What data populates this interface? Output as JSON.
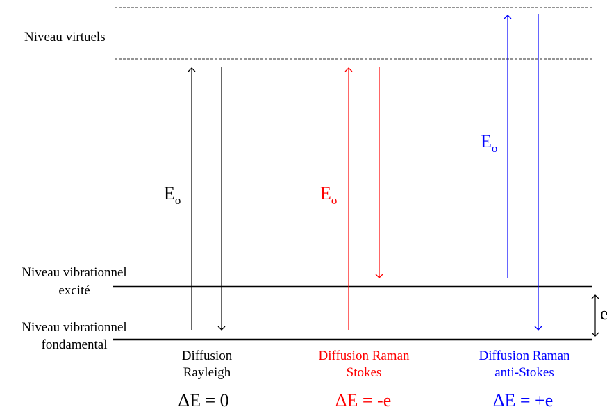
{
  "colors": {
    "rayleigh": "#000000",
    "stokes": "#ff0000",
    "anti_stokes": "#0000ff"
  },
  "levels": {
    "virtual_label": "Niveau virtuels",
    "excited_label_line1": "Niveau vibrationnel",
    "excited_label_line2": "excité",
    "ground_label_line1": "Niveau vibrationnel",
    "ground_label_line2": "fondamental",
    "gap_label": "e"
  },
  "energy_symbol": {
    "main": "E",
    "subscript": "o"
  },
  "processes": [
    {
      "caption_line1": "Diffusion",
      "caption_line2": "Rayleigh",
      "delta": "ΔE = 0"
    },
    {
      "caption_line1": "Diffusion Raman",
      "caption_line2": "Stokes",
      "delta": "ΔE = -e"
    },
    {
      "caption_line1": "Diffusion Raman",
      "caption_line2": "anti-Stokes",
      "delta": "ΔE = +e"
    }
  ]
}
